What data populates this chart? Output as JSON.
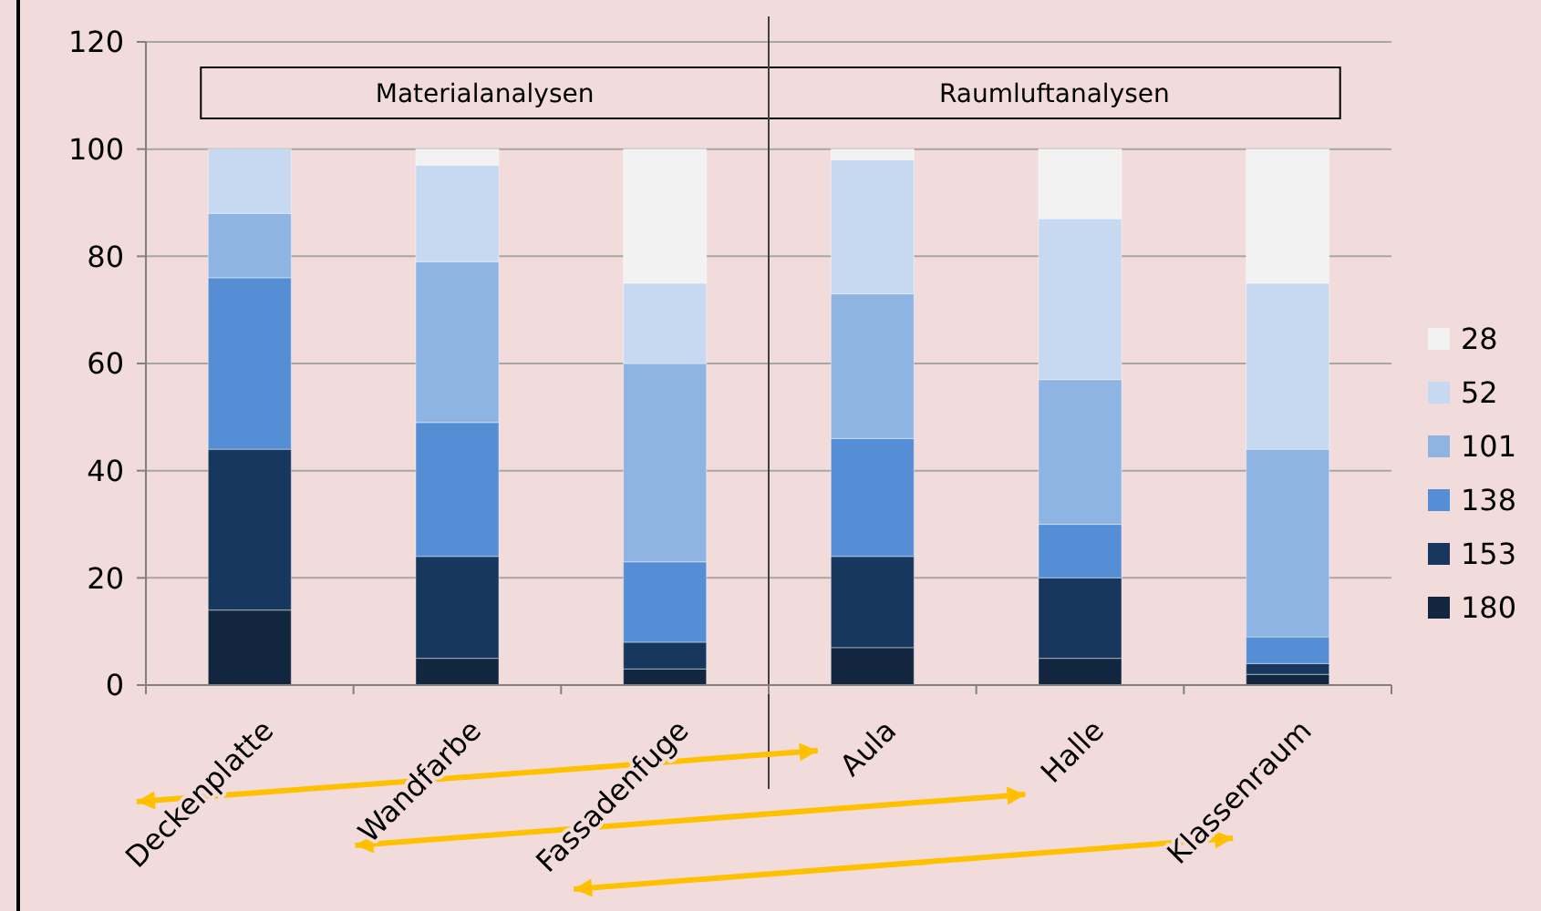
{
  "chart_data": {
    "type": "bar",
    "stacked": true,
    "categories": [
      "Deckenplatte",
      "Wandfarbe",
      "Fassadenfuge",
      "Aula",
      "Halle",
      "Klassenraum"
    ],
    "series": [
      {
        "name": "180",
        "color": "#12263f",
        "values": [
          14,
          5,
          3,
          7,
          5,
          2
        ]
      },
      {
        "name": "153",
        "color": "#17375e",
        "values": [
          30,
          19,
          5,
          17,
          15,
          2
        ]
      },
      {
        "name": "138",
        "color": "#558ed5",
        "values": [
          32,
          25,
          15,
          22,
          10,
          5
        ]
      },
      {
        "name": "101",
        "color": "#8eb4e3",
        "values": [
          12,
          30,
          37,
          27,
          27,
          35
        ]
      },
      {
        "name": "52",
        "color": "#c6d9f1",
        "values": [
          12,
          18,
          15,
          25,
          30,
          31
        ]
      },
      {
        "name": "28",
        "color": "#f2f2f2",
        "values": [
          0,
          3,
          25,
          2,
          13,
          25
        ]
      }
    ],
    "ref_lines": [
      {
        "axis": "x",
        "value": "Aula",
        "color": "#404040"
      }
    ],
    "ylim": [
      0,
      120
    ],
    "yticks": [
      0,
      20,
      40,
      60,
      80,
      100,
      120
    ],
    "grid": "y",
    "legend": "right",
    "annotations": [
      "Materialanalysen",
      "Raumluftanalysen"
    ]
  }
}
